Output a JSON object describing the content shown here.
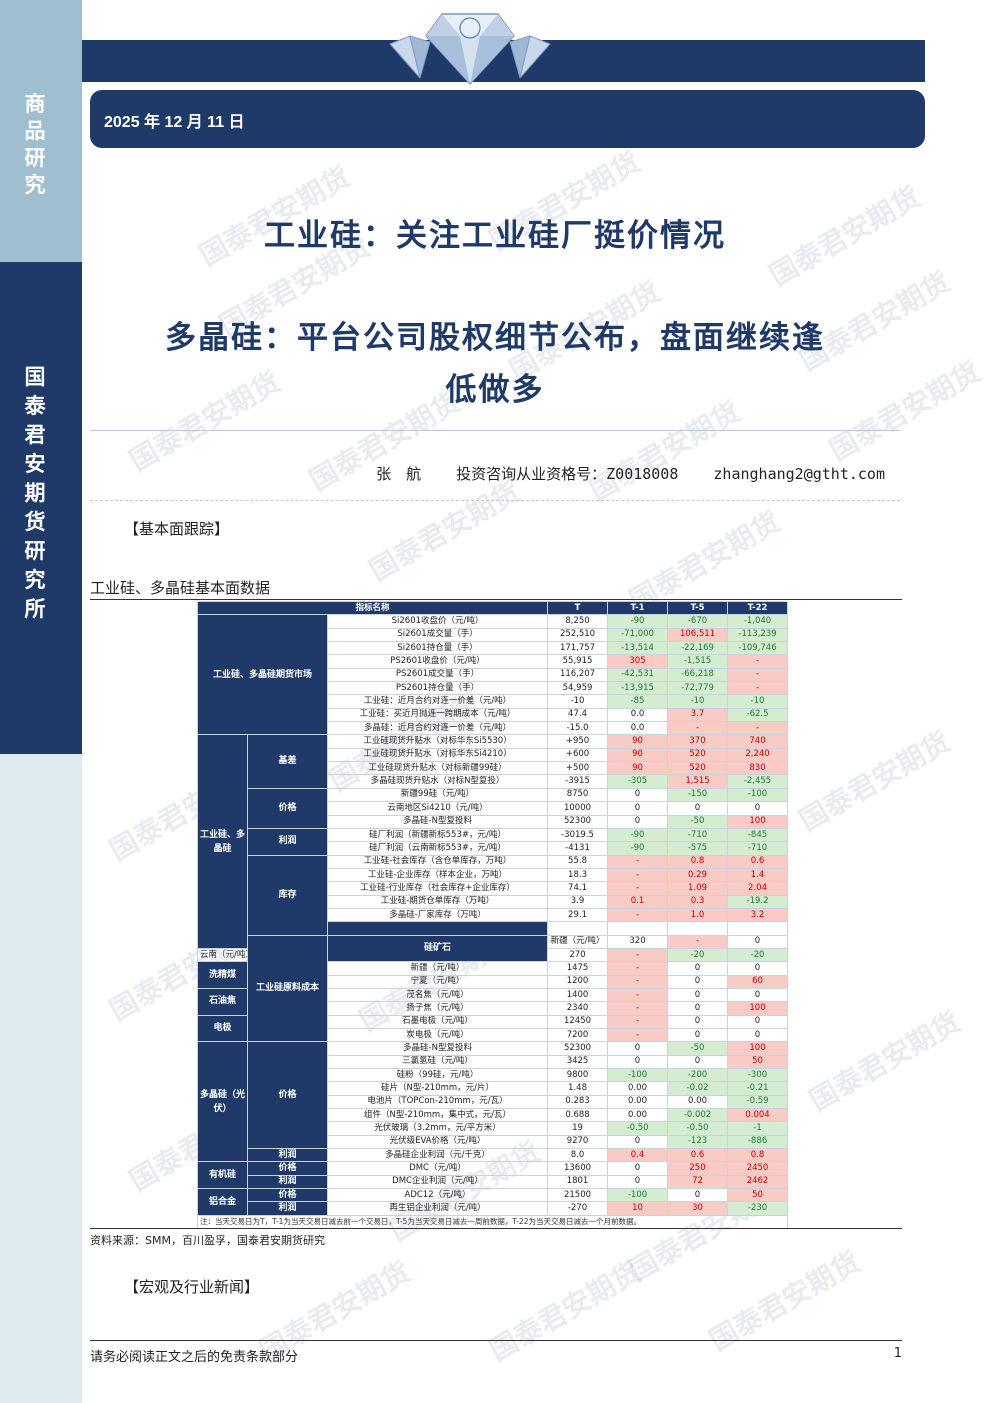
{
  "sidebar": {
    "section": [
      "商",
      "品",
      "研",
      "究"
    ],
    "org": [
      "国",
      "泰",
      "君",
      "安",
      "期",
      "货",
      "研",
      "究",
      "所"
    ]
  },
  "header": {
    "date": "2025 年 12 月 11 日"
  },
  "watermark": "国泰君安期货",
  "title": {
    "line1": "工业硅：关注工业硅厂挺价情况",
    "line2a": "多晶硅：平台公司股权细节公布，盘面继续逢",
    "line2b": "低做多"
  },
  "author": {
    "name": "张　航",
    "license": "投资咨询从业资格号：Z0018008",
    "email": "zhanghang2@gtht.com"
  },
  "sections": {
    "fundamentals": "【基本面跟踪】",
    "news": "【宏观及行业新闻】"
  },
  "table": {
    "title": "工业硅、多晶硅基本面数据",
    "headers": [
      "指标名称",
      "T",
      "T-1",
      "T-5",
      "T-22"
    ],
    "rows": [
      {
        "cat": "工业硅、多晶硅期货市场",
        "cat_span": 9,
        "sub": "",
        "sub_span": 0,
        "name": "Si2601收盘价（元/吨）",
        "t": "8,250",
        "t1": "-90",
        "t5": "-670",
        "t22": "-1,040"
      },
      {
        "name": "Si2601成交量（手）",
        "t": "252,510",
        "t1": "-71,000",
        "t5": "106,511",
        "t22": "-113,239"
      },
      {
        "name": "Si2601持仓量（手）",
        "t": "171,757",
        "t1": "-13,514",
        "t5": "-22,169",
        "t22": "-109,746"
      },
      {
        "name": "PS2601收盘价（元/吨）",
        "t": "55,915",
        "t1": "305",
        "t5": "-1,515",
        "t22": "-"
      },
      {
        "name": "PS2601成交量（手）",
        "t": "116,207",
        "t1": "-42,531",
        "t5": "-66,218",
        "t22": "-"
      },
      {
        "name": "PS2601持仓量（手）",
        "t": "54,959",
        "t1": "-13,915",
        "t5": "-72,779",
        "t22": "-"
      },
      {
        "name": "工业硅：近月合约对连一价差（元/吨）",
        "t": "-10",
        "t1": "-85",
        "t5": "-10",
        "t22": "-10"
      },
      {
        "name": "工业硅：买近月抛连一跨期成本（元/吨）",
        "t": "47.4",
        "t1": "0.0",
        "t5": "3.7",
        "t22": "-62.5"
      },
      {
        "name": "多晶硅：近月合约对连一价差（元/吨）",
        "t": "-15.0",
        "t1": "0.0",
        "t5": "-",
        "t22": "-"
      },
      {
        "cat": "工业硅、多晶硅",
        "cat_span": 16,
        "sub": "基差",
        "sub_span": 4,
        "name": "工业硅现货升贴水（对标华东Si5530）",
        "t": "+950",
        "t1": "90",
        "t5": "370",
        "t22": "740"
      },
      {
        "name": "工业硅现货升贴水（对标华东Si4210）",
        "t": "+600",
        "t1": "90",
        "t5": "520",
        "t22": "2,240"
      },
      {
        "name": "工业硅现货升贴水（对标新疆99硅）",
        "t": "+500",
        "t1": "90",
        "t5": "520",
        "t22": "830"
      },
      {
        "name": "多晶硅现货升贴水（对标N型复投）",
        "t": "-3915",
        "t1": "-305",
        "t5": "1,515",
        "t22": "-2,455"
      },
      {
        "sub": "价格",
        "sub_span": 3,
        "name": "新疆99硅（元/吨）",
        "t": "8750",
        "t1": "0",
        "t5": "-150",
        "t22": "-100"
      },
      {
        "name": "云南地区Si4210（元/吨）",
        "t": "10000",
        "t1": "0",
        "t5": "0",
        "t22": "0"
      },
      {
        "name": "多晶硅-N型复投料",
        "t": "52300",
        "t1": "0",
        "t5": "-50",
        "t22": "100"
      },
      {
        "sub": "利润",
        "sub_span": 2,
        "name": "硅厂利润（新疆新标553#，元/吨）",
        "t": "-3019.5",
        "t1": "-90",
        "t5": "-710",
        "t22": "-845"
      },
      {
        "name": "硅厂利润（云南新标553#，元/吨）",
        "t": "-4131",
        "t1": "-90",
        "t5": "-575",
        "t22": "-710"
      },
      {
        "sub": "库存",
        "sub_span": 6,
        "name": "工业硅-社会库存（含仓单库存，万吨）",
        "t": "55.8",
        "t1": "-",
        "t5": "0.8",
        "t22": "0.6"
      },
      {
        "name": "工业硅-企业库存（样本企业，万吨）",
        "t": "18.3",
        "t1": "-",
        "t5": "0.29",
        "t22": "1.4"
      },
      {
        "name": "工业硅-行业库存（社会库存+企业库存）",
        "t": "74.1",
        "t1": "-",
        "t5": "1.09",
        "t22": "2.04"
      },
      {
        "name": "工业硅-期货仓单库存（万吨）",
        "t": "3.9",
        "t1": "0.1",
        "t5": "0.3",
        "t22": "-19.2"
      },
      {
        "name": "多晶硅-厂家库存（万吨）",
        "t": "29.1",
        "t1": "-",
        "t5": "1.0",
        "t22": "3.2"
      },
      {
        "name": "",
        "t": "",
        "t1": "",
        "t5": "",
        "t22": "",
        "blank": true
      },
      {
        "cat": "工业硅原料成本",
        "cat_span": 8,
        "sub": "硅矿石",
        "sub_span": 2,
        "name": "新疆（元/吨）",
        "t": "320",
        "t1": "-",
        "t5": "0",
        "t22": "0"
      },
      {
        "name": "云南（元/吨）",
        "t": "270",
        "t1": "-",
        "t5": "-20",
        "t22": "-20"
      },
      {
        "sub": "洗精煤",
        "sub_span": 2,
        "name": "新疆（元/吨）",
        "t": "1475",
        "t1": "-",
        "t5": "0",
        "t22": "0"
      },
      {
        "name": "宁夏（元/吨）",
        "t": "1200",
        "t1": "-",
        "t5": "0",
        "t22": "60"
      },
      {
        "sub": "石油焦",
        "sub_span": 2,
        "name": "茂名焦（元/吨）",
        "t": "1400",
        "t1": "-",
        "t5": "0",
        "t22": "0"
      },
      {
        "name": "扬子焦（元/吨）",
        "t": "2340",
        "t1": "-",
        "t5": "0",
        "t22": "100"
      },
      {
        "sub": "电极",
        "sub_span": 2,
        "name": "石墨电极（元/吨）",
        "t": "12450",
        "t1": "-",
        "t5": "0",
        "t22": "0"
      },
      {
        "name": "炭电极（元/吨）",
        "t": "7200",
        "t1": "-",
        "t5": "0",
        "t22": "0"
      },
      {
        "cat": "多晶硅（光伏）",
        "cat_span": 9,
        "sub": "价格",
        "sub_span": 8,
        "name": "多晶硅-N型复投料",
        "t": "52300",
        "t1": "0",
        "t5": "-50",
        "t22": "100"
      },
      {
        "name": "三氯氢硅（元/吨）",
        "t": "3425",
        "t1": "0",
        "t5": "0",
        "t22": "50"
      },
      {
        "name": "硅粉（99硅，元/吨）",
        "t": "9800",
        "t1": "-100",
        "t5": "-200",
        "t22": "-300"
      },
      {
        "name": "硅片（N型-210mm，元/片）",
        "t": "1.48",
        "t1": "0.00",
        "t5": "-0.02",
        "t22": "-0.21"
      },
      {
        "name": "电池片（TOPCon-210mm，元/瓦）",
        "t": "0.283",
        "t1": "0.00",
        "t5": "0.00",
        "t22": "-0.59"
      },
      {
        "name": "组件（N型-210mm，集中式，元/瓦）",
        "t": "0.688",
        "t1": "0.00",
        "t5": "-0.002",
        "t22": "0.004"
      },
      {
        "name": "光伏玻璃（3.2mm，元/平方米）",
        "t": "19",
        "t1": "-0.50",
        "t5": "-0.50",
        "t22": "-1"
      },
      {
        "name": "光伏级EVA价格（元/吨）",
        "t": "9270",
        "t1": "0",
        "t5": "-123",
        "t22": "-886"
      },
      {
        "sub": "利润",
        "sub_span": 1,
        "name": "多晶硅企业利润（元/千克）",
        "t": "8.0",
        "t1": "0.4",
        "t5": "0.6",
        "t22": "0.8"
      },
      {
        "cat": "有机硅",
        "cat_span": 2,
        "sub": "价格",
        "sub_span": 1,
        "name": "DMC（元/吨）",
        "t": "13600",
        "t1": "0",
        "t5": "250",
        "t22": "2450"
      },
      {
        "sub": "利润",
        "sub_span": 1,
        "name": "DMC企业利润（元/吨）",
        "t": "1801",
        "t1": "0",
        "t5": "72",
        "t22": "2462"
      },
      {
        "cat": "铝合金",
        "cat_span": 2,
        "sub": "价格",
        "sub_span": 1,
        "name": "ADC12（元/吨）",
        "t": "21500",
        "t1": "-100",
        "t5": "0",
        "t22": "50"
      },
      {
        "sub": "利润",
        "sub_span": 1,
        "name": "再生铝企业利润（元/吨）",
        "t": "-270",
        "t1": "10",
        "t5": "30",
        "t22": "-230"
      }
    ],
    "note": "注：当天交易日为T，T-1为当天交易日减去前一个交易日，T-5为当天交易日减去一周前数据，T-22为当天交易日减去一个月前数据。",
    "source": "资料来源：SMM，百川盈孚，国泰君安期货研究"
  },
  "footer": {
    "disclaimer": "请务必阅读正文之后的免责条款部分",
    "page": "1"
  },
  "colors": {
    "navy": "#1f3a68",
    "sidebar_light": "#9fbfd0",
    "positive_bg": "#f8cbc4",
    "negative_bg": "#d4ecd0"
  }
}
